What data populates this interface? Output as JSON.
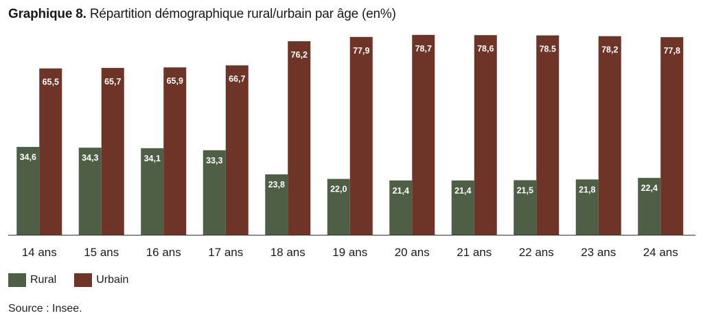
{
  "title_prefix": "Graphique 8.",
  "title_main": "Répartition démographique rural/urbain par âge (en%)",
  "source": "Source : Insee.",
  "colors": {
    "rural": "#4f5f46",
    "urbain": "#6e3428",
    "axis": "#333333",
    "label_text": "#ffffff"
  },
  "chart_data": {
    "type": "bar",
    "title": "Répartition démographique rural/urbain par âge (en%)",
    "categories": [
      "14 ans",
      "15 ans",
      "16 ans",
      "17 ans",
      "18 ans",
      "19 ans",
      "20 ans",
      "21 ans",
      "22 ans",
      "23 ans",
      "24 ans"
    ],
    "series": [
      {
        "name": "Rural",
        "values": [
          34.6,
          34.3,
          34.1,
          33.3,
          23.8,
          22.0,
          21.4,
          21.4,
          21.5,
          21.8,
          22.4
        ],
        "labels": [
          "34,6",
          "34,3",
          "34,1",
          "33,3",
          "23,8",
          "22,0",
          "21,4",
          "21,4",
          "21,5",
          "21,8",
          "22,4"
        ]
      },
      {
        "name": "Urbain",
        "values": [
          65.5,
          65.7,
          65.9,
          66.7,
          76.2,
          77.9,
          78.7,
          78.6,
          78.5,
          78.2,
          77.8
        ],
        "labels": [
          "65,5",
          "65,7",
          "65,9",
          "66,7",
          "76,2",
          "77,9",
          "78,7",
          "78,6",
          "78.5",
          "78,2",
          "77,8"
        ]
      }
    ],
    "ylim": [
      0,
      80
    ],
    "grid": false,
    "legend_position": "bottom-left"
  }
}
